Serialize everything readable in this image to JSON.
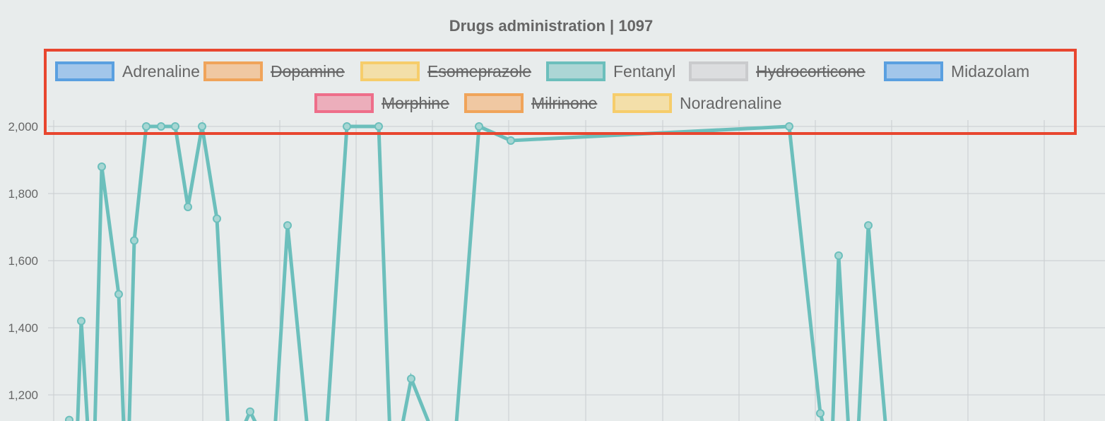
{
  "chart_data": {
    "type": "line",
    "title": "Drugs administration | 1097",
    "legend": [
      {
        "label": "Adrenaline",
        "hidden": false,
        "border": "#5aa0e0",
        "fill": "#a2c6ea"
      },
      {
        "label": "Dopamine",
        "hidden": true,
        "border": "#f0a45a",
        "fill": "#f0c8a2"
      },
      {
        "label": "Esomeprazole",
        "hidden": true,
        "border": "#f6cd6b",
        "fill": "#f3dfa9"
      },
      {
        "label": "Fentanyl",
        "hidden": false,
        "border": "#6cbfbc",
        "fill": "#acd6d5"
      },
      {
        "label": "Hydrocorticone",
        "hidden": true,
        "border": "#cacbcd",
        "fill": "#dcdddf"
      },
      {
        "label": "Midazolam",
        "hidden": false,
        "border": "#5aa0e0",
        "fill": "#a2c6ea"
      },
      {
        "label": "Morphine",
        "hidden": true,
        "border": "#ee6e8a",
        "fill": "#ecaebb"
      },
      {
        "label": "Milrinone",
        "hidden": true,
        "border": "#f0a45a",
        "fill": "#f0c8a2"
      },
      {
        "label": "Noradrenaline",
        "hidden": false,
        "border": "#f6cd6b",
        "fill": "#f3dfa9"
      }
    ],
    "y_ticks": [
      2000,
      1800,
      1600,
      1400,
      1200
    ],
    "y_tick_labels": [
      "2,000",
      "1,800",
      "1,600",
      "1,400",
      "1,200"
    ],
    "series": [
      {
        "name": "Fentanyl",
        "color": "#6cbfbc",
        "values": [
          1125,
          1420,
          1880,
          1500,
          1660,
          2000,
          2000,
          2000,
          1760,
          2000,
          1725,
          1150,
          1705,
          2000,
          2000,
          1248,
          2000,
          1958,
          2000,
          1145,
          1615,
          1705
        ]
      }
    ],
    "highlight_box_color": "#e8462f"
  }
}
